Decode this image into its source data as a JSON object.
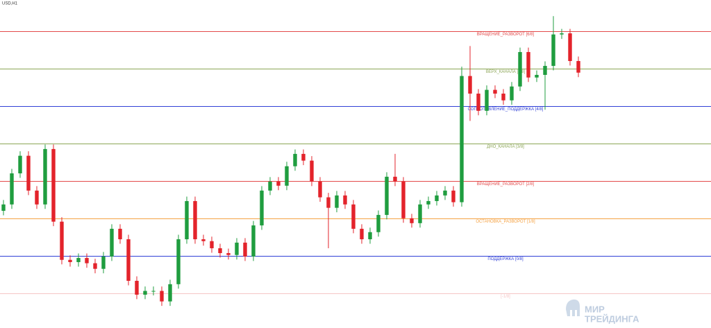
{
  "chart_data": {
    "type": "candlestick",
    "title": "USD,H1",
    "ylim": [
      -1.93,
      6.83
    ],
    "up_color": "#1f9d3f",
    "down_color": "#e3232b",
    "open": [
      1.2,
      1.37,
      2.2,
      2.67,
      1.74,
      1.37,
      2.85,
      0.91,
      -0.11,
      -0.17,
      -0.06,
      -0.2,
      -0.35,
      -0.02,
      0.72,
      0.44,
      -0.67,
      -1.04,
      -0.94,
      -0.94,
      -1.22,
      -0.76,
      0.44,
      1.46,
      0.44,
      0.39,
      0.2,
      0.07,
      0.02,
      0.35,
      -0.02,
      0.81,
      1.74,
      1.98,
      1.87,
      2.39,
      2.72,
      2.54,
      1.98,
      1.56,
      1.28,
      1.61,
      1.37,
      0.72,
      0.44,
      0.63,
      1.09,
      2.11,
      1.98,
      1.0,
      0.87,
      1.37,
      1.46,
      1.61,
      1.74,
      1.43,
      4.8,
      4.33,
      3.87,
      4.43,
      4.33,
      4.15,
      4.52,
      5.44,
      4.76,
      4.83,
      5.07,
      5.91,
      5.94,
      5.2
    ],
    "high": [
      1.49,
      2.32,
      2.79,
      2.79,
      1.86,
      2.97,
      2.97,
      1.03,
      0.01,
      0.06,
      0.06,
      -0.08,
      0.1,
      0.84,
      0.84,
      0.56,
      -0.55,
      -0.82,
      -0.82,
      -0.82,
      -0.64,
      0.56,
      1.58,
      1.58,
      0.56,
      0.51,
      0.32,
      0.19,
      0.47,
      0.47,
      0.93,
      1.86,
      2.1,
      2.1,
      2.51,
      2.84,
      2.84,
      2.66,
      2.1,
      1.68,
      1.73,
      1.73,
      1.49,
      0.84,
      0.75,
      1.21,
      2.23,
      2.72,
      2.1,
      1.12,
      1.49,
      1.58,
      1.73,
      1.86,
      1.86,
      5.05,
      5.6,
      4.45,
      4.55,
      4.55,
      4.45,
      4.64,
      5.56,
      5.56,
      4.95,
      5.19,
      6.4,
      6.06,
      6.06,
      5.32
    ],
    "low": [
      1.08,
      1.25,
      2.08,
      1.62,
      1.25,
      1.25,
      0.79,
      -0.23,
      -0.29,
      -0.29,
      -0.32,
      -0.47,
      -0.47,
      -0.14,
      0.32,
      -0.79,
      -1.16,
      -1.16,
      -1.06,
      -1.34,
      -1.34,
      -0.88,
      0.32,
      0.32,
      0.27,
      0.08,
      -0.05,
      -0.1,
      -0.1,
      -0.14,
      -0.14,
      0.69,
      1.62,
      1.75,
      1.75,
      2.27,
      2.42,
      1.86,
      1.44,
      0.2,
      1.16,
      1.25,
      0.6,
      0.32,
      0.32,
      0.51,
      0.97,
      1.86,
      0.88,
      0.75,
      0.75,
      1.25,
      1.34,
      1.49,
      1.31,
      1.31,
      3.6,
      3.75,
      3.75,
      4.21,
      4.03,
      4.03,
      4.4,
      4.64,
      4.64,
      3.9,
      4.95,
      5.79,
      5.08,
      4.77
    ],
    "close": [
      1.37,
      2.2,
      2.67,
      1.74,
      1.37,
      2.85,
      0.91,
      -0.11,
      -0.17,
      -0.06,
      -0.2,
      -0.35,
      -0.02,
      0.72,
      0.44,
      -0.67,
      -1.04,
      -0.94,
      -0.94,
      -1.22,
      -0.76,
      0.44,
      1.46,
      0.44,
      0.39,
      0.2,
      0.07,
      0.02,
      0.35,
      -0.02,
      0.81,
      1.74,
      1.98,
      1.87,
      2.39,
      2.72,
      2.54,
      1.98,
      1.56,
      1.28,
      1.61,
      1.37,
      0.72,
      0.44,
      0.63,
      1.09,
      2.11,
      1.98,
      1.0,
      0.87,
      1.37,
      1.46,
      1.61,
      1.74,
      1.43,
      4.8,
      4.33,
      3.87,
      4.43,
      4.33,
      4.15,
      4.52,
      5.44,
      4.76,
      4.83,
      5.07,
      5.91,
      5.94,
      5.2,
      4.89
    ],
    "levels": [
      {
        "value": 6,
        "label": "ВРАЩЕНИЕ_РАЗВОРОТ [6/8]",
        "color": "#e34a4a"
      },
      {
        "value": 5,
        "label": "ВЕРХ_КАНАЛА [5/8]",
        "color": "#8ba555"
      },
      {
        "value": 4,
        "label": "СОПРОТИВЛЕНИЕ_ПОДДЕРЖКА [4/8]",
        "color": "#2f3fd6"
      },
      {
        "value": 3,
        "label": "ДНО_КАНАЛА [3/8]",
        "color": "#8ba555"
      },
      {
        "value": 2,
        "label": "ВРАЩЕНИЕ_РАЗВОРОТ [2/8]",
        "color": "#e34a4a"
      },
      {
        "value": 1,
        "label": "ОСТАНОВКА_РАЗВОРОТ [1/8]",
        "color": "#f5a243"
      },
      {
        "value": 0,
        "label": "ПОДДЕРЖКА [0/8]",
        "color": "#2f3fd6"
      },
      {
        "value": -1,
        "label": "[-1/8]",
        "color": "#f6c6c6"
      }
    ]
  },
  "watermark": {
    "line1": "МИР",
    "line2": "ТРЕЙДИНГА"
  }
}
